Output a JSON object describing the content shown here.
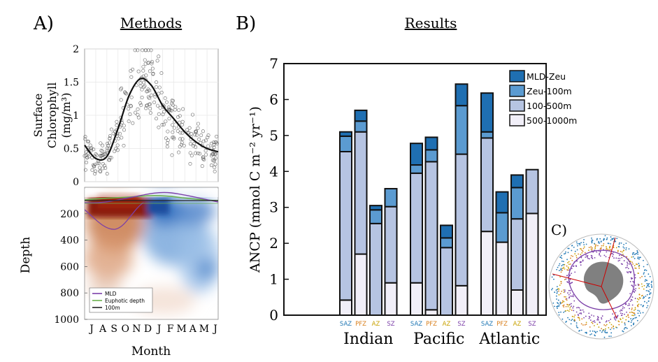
{
  "panels": {
    "a_label": "A)",
    "methods_title": "Methods",
    "b_label": "B)",
    "results_title": "Results",
    "c_label": "C)"
  },
  "chart_data": [
    {
      "type": "scatter",
      "panel": "A-top",
      "ylabel_lines": [
        "Surface",
        "Chlorophyll",
        "(mg/m³)"
      ],
      "ylim": [
        0,
        2
      ],
      "yticks": [
        "0",
        "0.5",
        "1",
        "1.5",
        "2"
      ],
      "grid": true,
      "fit_curve": {
        "x": [
          0,
          1,
          2,
          3,
          4,
          5,
          6,
          7,
          8,
          9,
          10,
          11,
          12
        ],
        "y": [
          0.55,
          0.35,
          0.38,
          0.8,
          1.3,
          1.55,
          1.45,
          1.15,
          0.95,
          0.75,
          0.6,
          0.5,
          0.45
        ]
      }
    },
    {
      "type": "heatmap",
      "panel": "A-bottom",
      "ylabel": "Depth",
      "xlabel": "Month",
      "ylim": [
        1000,
        0
      ],
      "yticks": [
        "0",
        "200",
        "400",
        "600",
        "800",
        "1000"
      ],
      "xticks": [
        "J",
        "A",
        "S",
        "O",
        "N",
        "D",
        "J",
        "F",
        "M",
        "A",
        "M",
        "J"
      ],
      "legend": [
        {
          "name": "MLD",
          "color": "#7b3fa8"
        },
        {
          "name": "Euphotic depth",
          "color": "#6ab04c"
        },
        {
          "name": "100m",
          "color": "#222222"
        }
      ]
    },
    {
      "type": "bar",
      "panel": "B",
      "stacked": true,
      "ylabel": "ANCP (mmol C m⁻² yr⁻¹)",
      "ylim": [
        0,
        7
      ],
      "yticks": [
        "0",
        "1",
        "2",
        "3",
        "4",
        "5",
        "6",
        "7"
      ],
      "legend_position": "top-right",
      "legend": [
        {
          "name": "MLD-Zeu",
          "color": "#1f6fb2"
        },
        {
          "name": "Zeu-100m",
          "color": "#5b9bd1"
        },
        {
          "name": "100-500m",
          "color": "#b6c4e2"
        },
        {
          "name": "500-1000m",
          "color": "#f1eff8"
        }
      ],
      "groups": [
        {
          "name": "Indian",
          "bars": [
            {
              "zone": "SAZ",
              "zone_color": "#1f77b4",
              "values": [
                0.42,
                4.13,
                0.43,
                0.12
              ]
            },
            {
              "zone": "PFZ",
              "zone_color": "#d97f1c",
              "values": [
                1.7,
                3.4,
                0.3,
                0.3
              ]
            },
            {
              "zone": "AZ",
              "zone_color": "#c8a200",
              "values": [
                0.0,
                2.55,
                0.38,
                0.12
              ]
            },
            {
              "zone": "SZ",
              "zone_color": "#7b3fa8",
              "values": [
                0.9,
                2.12,
                0.5,
                0.0
              ]
            }
          ]
        },
        {
          "name": "Pacific",
          "bars": [
            {
              "zone": "SAZ",
              "zone_color": "#1f77b4",
              "values": [
                0.9,
                3.05,
                0.23,
                0.6
              ]
            },
            {
              "zone": "PFZ",
              "zone_color": "#d97f1c",
              "values": [
                0.15,
                4.12,
                0.33,
                0.35
              ]
            },
            {
              "zone": "AZ",
              "zone_color": "#c8a200",
              "values": [
                0.0,
                1.88,
                0.27,
                0.35
              ]
            },
            {
              "zone": "SZ",
              "zone_color": "#7b3fa8",
              "values": [
                0.82,
                3.66,
                1.35,
                0.6
              ]
            }
          ]
        },
        {
          "name": "Atlantic",
          "bars": [
            {
              "zone": "SAZ",
              "zone_color": "#1f77b4",
              "values": [
                2.33,
                2.6,
                0.17,
                1.08
              ]
            },
            {
              "zone": "PFZ",
              "zone_color": "#d97f1c",
              "values": [
                2.03,
                0.0,
                0.82,
                0.58
              ]
            },
            {
              "zone": "AZ",
              "zone_color": "#c8a200",
              "values": [
                0.7,
                1.98,
                0.87,
                0.35
              ]
            },
            {
              "zone": "SZ",
              "zone_color": "#7b3fa8",
              "values": [
                2.83,
                1.22,
                0.0,
                0.0
              ]
            }
          ]
        }
      ]
    }
  ]
}
